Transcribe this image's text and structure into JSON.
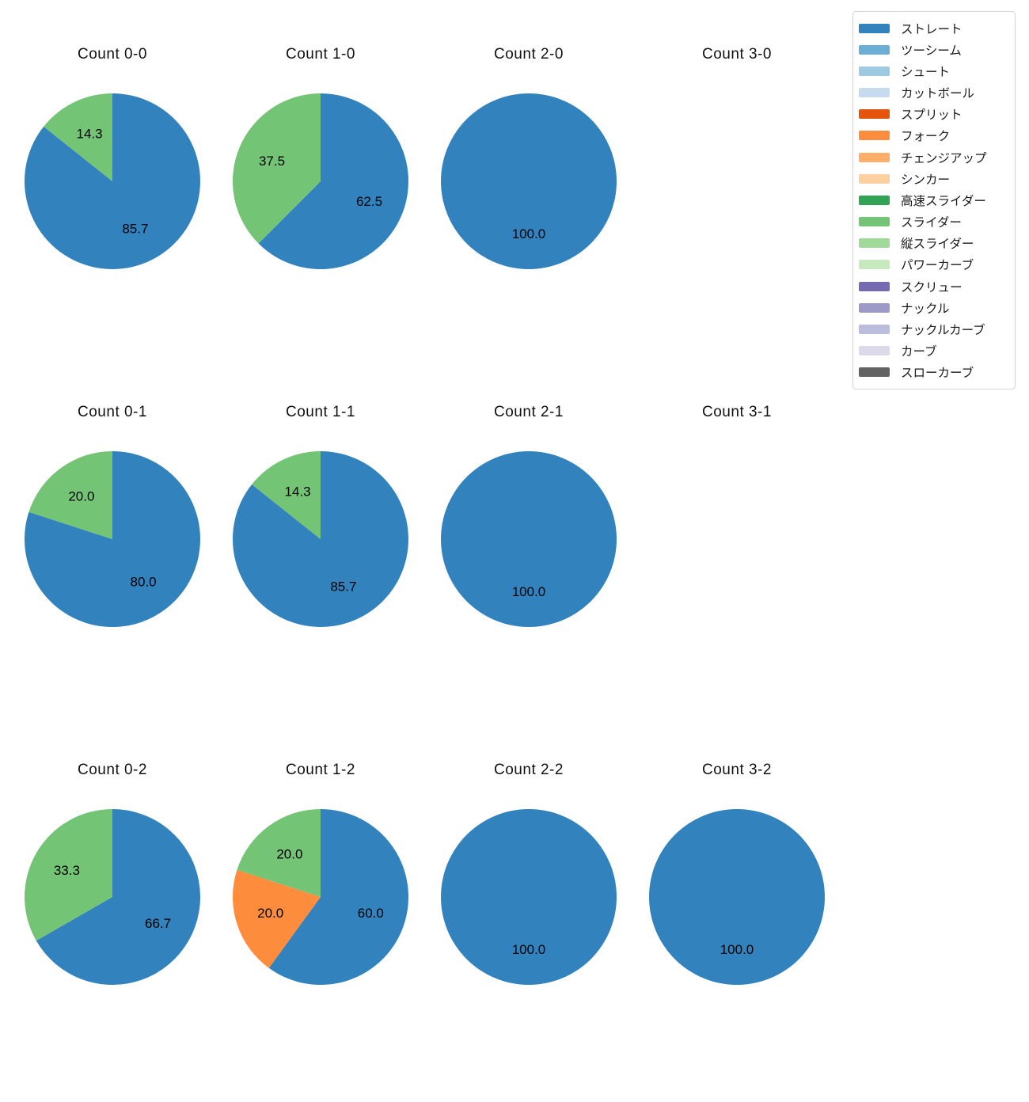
{
  "figure": {
    "background": "#ffffff",
    "text_color": "#111111"
  },
  "legend": {
    "position": "upper right",
    "items": [
      {
        "label": "ストレート",
        "color": "#3182bd"
      },
      {
        "label": "ツーシーム",
        "color": "#6baed6"
      },
      {
        "label": "シュート",
        "color": "#9ecae1"
      },
      {
        "label": "カットボール",
        "color": "#c6dbef"
      },
      {
        "label": "スプリット",
        "color": "#e6550d"
      },
      {
        "label": "フォーク",
        "color": "#fd8d3c"
      },
      {
        "label": "チェンジアップ",
        "color": "#fdae6b"
      },
      {
        "label": "シンカー",
        "color": "#fdd0a2"
      },
      {
        "label": "高速スライダー",
        "color": "#31a354"
      },
      {
        "label": "スライダー",
        "color": "#74c476"
      },
      {
        "label": "縦スライダー",
        "color": "#a1d99b"
      },
      {
        "label": "パワーカーブ",
        "color": "#c7e9c0"
      },
      {
        "label": "スクリュー",
        "color": "#756bb1"
      },
      {
        "label": "ナックル",
        "color": "#9e9ac8"
      },
      {
        "label": "ナックルカーブ",
        "color": "#bcbddc"
      },
      {
        "label": "カーブ",
        "color": "#dadaeb"
      },
      {
        "label": "スローカーブ",
        "color": "#636363"
      }
    ]
  },
  "chart_layout": {
    "grid_rows": 3,
    "grid_cols": 4,
    "start_angle_deg": 90,
    "direction": "clockwise",
    "value_format": "one-decimal-percent",
    "label_distance_ratio": 0.6
  },
  "chart_data": [
    {
      "type": "pie",
      "title": "Count 0-0",
      "slices": [
        {
          "label": "ストレート",
          "value": 85.7
        },
        {
          "label": "スライダー",
          "value": 14.3
        }
      ]
    },
    {
      "type": "pie",
      "title": "Count 1-0",
      "slices": [
        {
          "label": "ストレート",
          "value": 62.5
        },
        {
          "label": "スライダー",
          "value": 37.5
        }
      ]
    },
    {
      "type": "pie",
      "title": "Count 2-0",
      "slices": [
        {
          "label": "ストレート",
          "value": 100.0
        }
      ]
    },
    {
      "type": "pie",
      "title": "Count 3-0",
      "slices": []
    },
    {
      "type": "pie",
      "title": "Count 0-1",
      "slices": [
        {
          "label": "ストレート",
          "value": 80.0
        },
        {
          "label": "スライダー",
          "value": 20.0
        }
      ]
    },
    {
      "type": "pie",
      "title": "Count 1-1",
      "slices": [
        {
          "label": "ストレート",
          "value": 85.7
        },
        {
          "label": "スライダー",
          "value": 14.3
        }
      ]
    },
    {
      "type": "pie",
      "title": "Count 2-1",
      "slices": [
        {
          "label": "ストレート",
          "value": 100.0
        }
      ]
    },
    {
      "type": "pie",
      "title": "Count 3-1",
      "slices": []
    },
    {
      "type": "pie",
      "title": "Count 0-2",
      "slices": [
        {
          "label": "ストレート",
          "value": 66.7
        },
        {
          "label": "スライダー",
          "value": 33.3
        }
      ]
    },
    {
      "type": "pie",
      "title": "Count 1-2",
      "slices": [
        {
          "label": "ストレート",
          "value": 60.0
        },
        {
          "label": "フォーク",
          "value": 20.0
        },
        {
          "label": "スライダー",
          "value": 20.0
        }
      ]
    },
    {
      "type": "pie",
      "title": "Count 2-2",
      "slices": [
        {
          "label": "ストレート",
          "value": 100.0
        }
      ]
    },
    {
      "type": "pie",
      "title": "Count 3-2",
      "slices": [
        {
          "label": "ストレート",
          "value": 100.0
        }
      ]
    }
  ]
}
